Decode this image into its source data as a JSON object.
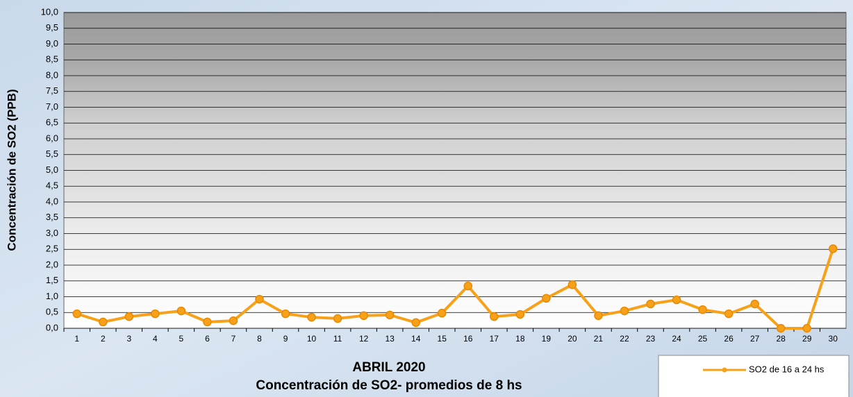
{
  "chart_data": {
    "type": "line",
    "title": "ABRIL 2020",
    "subtitle": "Concentración de SO2- promedios de 8 hs",
    "y_label": "Concentración de SO2 (PPB)",
    "categories": [
      "1",
      "2",
      "3",
      "4",
      "5",
      "6",
      "7",
      "8",
      "9",
      "10",
      "11",
      "12",
      "13",
      "14",
      "15",
      "16",
      "17",
      "18",
      "19",
      "20",
      "21",
      "22",
      "23",
      "24",
      "25",
      "26",
      "27",
      "28",
      "29",
      "30"
    ],
    "series": [
      {
        "name": "SO2 de 16 a 24 hs",
        "color": "#f7a11a",
        "values": [
          0.46,
          0.2,
          0.37,
          0.46,
          0.55,
          0.2,
          0.24,
          0.92,
          0.46,
          0.35,
          0.31,
          0.4,
          0.42,
          0.18,
          0.48,
          1.34,
          0.37,
          0.44,
          0.95,
          1.38,
          0.4,
          0.55,
          0.77,
          0.9,
          0.59,
          0.46,
          0.77,
          0,
          0,
          2.52
        ]
      }
    ],
    "ylim": [
      0,
      10
    ],
    "yticks": [
      {
        "value": 0,
        "label": "0,0"
      },
      {
        "value": 0.5,
        "label": "0,5"
      },
      {
        "value": 1,
        "label": "1,0"
      },
      {
        "value": 1.5,
        "label": "1,5"
      },
      {
        "value": 2,
        "label": "2,0"
      },
      {
        "value": 2.5,
        "label": "2,5"
      },
      {
        "value": 3,
        "label": "3,0"
      },
      {
        "value": 3.5,
        "label": "3,5"
      },
      {
        "value": 4,
        "label": "4,0"
      },
      {
        "value": 4.5,
        "label": "4,5"
      },
      {
        "value": 5,
        "label": "5,0"
      },
      {
        "value": 5.5,
        "label": "5,5"
      },
      {
        "value": 6,
        "label": "6,0"
      },
      {
        "value": 6.5,
        "label": "6,5"
      },
      {
        "value": 7,
        "label": "7,0"
      },
      {
        "value": 7.5,
        "label": "7,5"
      },
      {
        "value": 8,
        "label": "8,0"
      },
      {
        "value": 8.5,
        "label": "8,5"
      },
      {
        "value": 9,
        "label": "9,0"
      },
      {
        "value": 9.5,
        "label": "9,5"
      },
      {
        "value": 10,
        "label": "10,0"
      }
    ],
    "grid": true,
    "legend": "bottom-right"
  }
}
